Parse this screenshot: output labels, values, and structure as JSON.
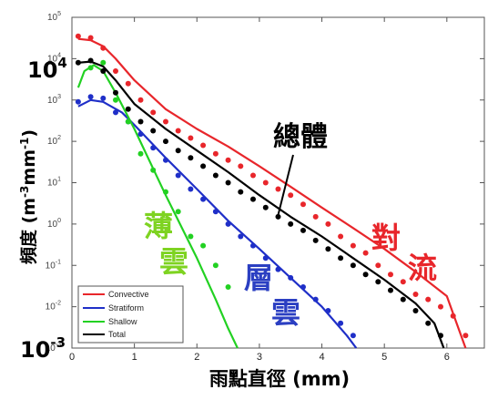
{
  "chart_data": {
    "type": "line",
    "xlabel": "雨點直徑 (mm)",
    "ylabel": "頻度 (m-3mm-1)",
    "ylabel_parts": {
      "main": "頻度 (m",
      "sup1": "-3",
      "mid": "mm",
      "sup2": "-1",
      "end": ")"
    },
    "xlim": [
      0,
      6.6
    ],
    "ylim": [
      0.001,
      100000
    ],
    "yscale": "log",
    "x_ticks": [
      "0",
      "1",
      "2",
      "3",
      "4",
      "5",
      "6"
    ],
    "y_ticks": [
      {
        "base": "10",
        "exp": "5"
      },
      {
        "base": "10",
        "exp": "4"
      },
      {
        "base": "10",
        "exp": "3"
      },
      {
        "base": "10",
        "exp": "2"
      },
      {
        "base": "10",
        "exp": "1"
      },
      {
        "base": "10",
        "exp": "0"
      },
      {
        "base": "10",
        "exp": "-1"
      },
      {
        "base": "10",
        "exp": "-2"
      },
      {
        "base": "10",
        "exp": "-3"
      }
    ],
    "big_labels": {
      "top": {
        "base": "10",
        "exp": "4"
      },
      "bottom": {
        "base": "10",
        "exp": "-3"
      }
    },
    "series": [
      {
        "name": "Convective",
        "color": "#e8262b",
        "fit": [
          [
            0.1,
            30000
          ],
          [
            0.3,
            28000
          ],
          [
            0.5,
            20000
          ],
          [
            0.7,
            10000
          ],
          [
            1.0,
            3000
          ],
          [
            1.5,
            600
          ],
          [
            2.0,
            200
          ],
          [
            2.5,
            75
          ],
          [
            3.0,
            25
          ],
          [
            3.5,
            8
          ],
          [
            4.0,
            2.5
          ],
          [
            4.5,
            0.8
          ],
          [
            5.0,
            0.25
          ],
          [
            5.5,
            0.07
          ],
          [
            6.0,
            0.018
          ],
          [
            6.3,
            0.001
          ]
        ],
        "obs": [
          [
            0.1,
            35000
          ],
          [
            0.3,
            32000
          ],
          [
            0.5,
            18000
          ],
          [
            0.7,
            5000
          ],
          [
            0.9,
            2500
          ],
          [
            1.1,
            1000
          ],
          [
            1.3,
            500
          ],
          [
            1.5,
            300
          ],
          [
            1.7,
            180
          ],
          [
            1.9,
            120
          ],
          [
            2.1,
            80
          ],
          [
            2.3,
            50
          ],
          [
            2.5,
            35
          ],
          [
            2.7,
            25
          ],
          [
            2.9,
            15
          ],
          [
            3.1,
            10
          ],
          [
            3.3,
            7
          ],
          [
            3.5,
            5
          ],
          [
            3.7,
            3
          ],
          [
            3.9,
            1.5
          ],
          [
            4.1,
            1
          ],
          [
            4.3,
            0.5
          ],
          [
            4.5,
            0.3
          ],
          [
            4.7,
            0.2
          ],
          [
            4.9,
            0.1
          ],
          [
            5.1,
            0.06
          ],
          [
            5.3,
            0.04
          ],
          [
            5.5,
            0.02
          ],
          [
            5.7,
            0.015
          ],
          [
            5.9,
            0.01
          ],
          [
            6.1,
            0.006
          ],
          [
            6.3,
            0.002
          ]
        ]
      },
      {
        "name": "Stratiform",
        "color": "#1f2fc8",
        "fit": [
          [
            0.1,
            700
          ],
          [
            0.3,
            1000
          ],
          [
            0.5,
            900
          ],
          [
            0.8,
            500
          ],
          [
            1.0,
            250
          ],
          [
            1.5,
            40
          ],
          [
            2.0,
            7
          ],
          [
            2.5,
            1.2
          ],
          [
            3.0,
            0.25
          ],
          [
            3.5,
            0.05
          ],
          [
            4.0,
            0.01
          ],
          [
            4.4,
            0.002
          ],
          [
            4.55,
            0.001
          ]
        ],
        "obs": [
          [
            0.1,
            900
          ],
          [
            0.3,
            1200
          ],
          [
            0.5,
            1100
          ],
          [
            0.7,
            500
          ],
          [
            0.9,
            300
          ],
          [
            1.1,
            150
          ],
          [
            1.3,
            70
          ],
          [
            1.5,
            35
          ],
          [
            1.7,
            15
          ],
          [
            1.9,
            7
          ],
          [
            2.1,
            4
          ],
          [
            2.3,
            2
          ],
          [
            2.5,
            1
          ],
          [
            2.7,
            0.5
          ],
          [
            2.9,
            0.3
          ],
          [
            3.1,
            0.15
          ],
          [
            3.3,
            0.08
          ],
          [
            3.5,
            0.05
          ],
          [
            3.7,
            0.03
          ],
          [
            3.9,
            0.015
          ],
          [
            4.1,
            0.008
          ],
          [
            4.3,
            0.004
          ],
          [
            4.5,
            0.002
          ]
        ]
      },
      {
        "name": "Shallow",
        "color": "#22d122",
        "fit": [
          [
            0.1,
            2000
          ],
          [
            0.2,
            5000
          ],
          [
            0.35,
            7000
          ],
          [
            0.5,
            5000
          ],
          [
            0.7,
            1500
          ],
          [
            1.0,
            200
          ],
          [
            1.5,
            5
          ],
          [
            2.0,
            0.15
          ],
          [
            2.3,
            0.015
          ],
          [
            2.5,
            0.003
          ],
          [
            2.65,
            0.001
          ]
        ],
        "obs": [
          [
            0.3,
            6000
          ],
          [
            0.5,
            8000
          ],
          [
            0.7,
            1000
          ],
          [
            0.9,
            300
          ],
          [
            1.1,
            50
          ],
          [
            1.3,
            20
          ],
          [
            1.5,
            6
          ],
          [
            1.7,
            2
          ],
          [
            1.9,
            0.5
          ],
          [
            2.1,
            0.3
          ],
          [
            2.3,
            0.1
          ],
          [
            2.5,
            0.03
          ]
        ]
      },
      {
        "name": "Total",
        "color": "#000000",
        "fit": [
          [
            0.1,
            8000
          ],
          [
            0.3,
            8500
          ],
          [
            0.5,
            6500
          ],
          [
            0.7,
            3000
          ],
          [
            1.0,
            800
          ],
          [
            1.5,
            200
          ],
          [
            2.0,
            60
          ],
          [
            2.5,
            18
          ],
          [
            3.0,
            5
          ],
          [
            3.5,
            1.5
          ],
          [
            4.0,
            0.5
          ],
          [
            4.5,
            0.15
          ],
          [
            5.0,
            0.045
          ],
          [
            5.5,
            0.012
          ],
          [
            5.8,
            0.004
          ],
          [
            5.95,
            0.001
          ]
        ],
        "obs": [
          [
            0.1,
            8000
          ],
          [
            0.3,
            9000
          ],
          [
            0.5,
            5000
          ],
          [
            0.7,
            1500
          ],
          [
            0.9,
            600
          ],
          [
            1.1,
            300
          ],
          [
            1.3,
            180
          ],
          [
            1.5,
            100
          ],
          [
            1.7,
            60
          ],
          [
            1.9,
            40
          ],
          [
            2.1,
            25
          ],
          [
            2.3,
            15
          ],
          [
            2.5,
            10
          ],
          [
            2.7,
            6
          ],
          [
            2.9,
            4
          ],
          [
            3.1,
            2.5
          ],
          [
            3.3,
            1.5
          ],
          [
            3.5,
            1
          ],
          [
            3.7,
            0.7
          ],
          [
            3.9,
            0.4
          ],
          [
            4.1,
            0.25
          ],
          [
            4.3,
            0.15
          ],
          [
            4.5,
            0.1
          ],
          [
            4.7,
            0.06
          ],
          [
            4.9,
            0.04
          ],
          [
            5.1,
            0.025
          ],
          [
            5.3,
            0.015
          ],
          [
            5.5,
            0.008
          ],
          [
            5.7,
            0.004
          ],
          [
            5.9,
            0.002
          ]
        ]
      }
    ],
    "annotations": [
      {
        "text": "總體",
        "color": "#000000"
      },
      {
        "text": "對",
        "color": "#e8262b"
      },
      {
        "text": "流",
        "color": "#e8262b"
      },
      {
        "text": "層",
        "color": "#2b3fc2"
      },
      {
        "text": "雲",
        "color": "#2b3fc2"
      },
      {
        "text": "薄",
        "color": "#7ed321"
      },
      {
        "text": "雲",
        "color": "#7ed321"
      }
    ],
    "legend": [
      "Convective",
      "Stratiform",
      "Shallow",
      "Total"
    ],
    "legend_position": "bottom-left",
    "grid": false
  }
}
